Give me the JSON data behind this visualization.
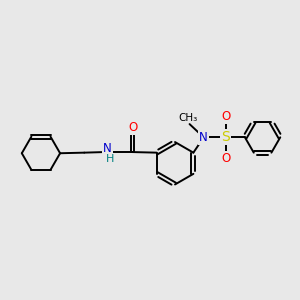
{
  "bg_color": "#e8e8e8",
  "bond_color": "#000000",
  "line_width": 1.4,
  "atom_colors": {
    "O": "#ff0000",
    "N": "#0000cc",
    "S": "#cccc00",
    "C": "#000000",
    "H": "#008080"
  },
  "font_size": 8.5
}
